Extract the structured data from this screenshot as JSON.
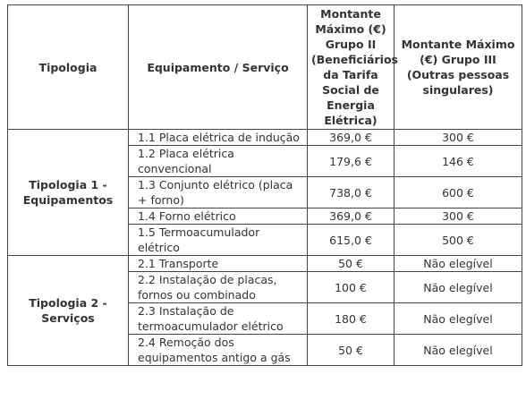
{
  "table": {
    "headers": [
      "Tipologia",
      "Equipamento / Serviço",
      "Montante Máximo (€) Grupo II (Beneficiários da Tarifa Social de Energia Elétrica)",
      "Montante Máximo (€) Grupo III (Outras pessoas singulares)"
    ],
    "groups": [
      {
        "label": "Tipologia 1 - Equipamentos",
        "rows": [
          [
            "1.1 Placa elétrica de indução",
            "369,0 €",
            "300 €"
          ],
          [
            "1.2 Placa elétrica convencional",
            "179,6 €",
            "146 €"
          ],
          [
            "1.3 Conjunto elétrico (placa + forno)",
            "738,0 €",
            "600 €"
          ],
          [
            "1.4 Forno elétrico",
            "369,0 €",
            "300 €"
          ],
          [
            "1.5 Termoacumulador elétrico",
            "615,0 €",
            "500 €"
          ]
        ]
      },
      {
        "label": "Tipologia 2 - Serviços",
        "rows": [
          [
            "2.1 Transporte",
            "50 €",
            "Não elegível"
          ],
          [
            "2.2 Instalação de placas, fornos ou combinado",
            "100 €",
            "Não elegível"
          ],
          [
            "2.3 Instalação de termoacumulador elétrico",
            "180 €",
            "Não elegível"
          ],
          [
            "2.4 Remoção dos equipamentos antigo a gás",
            "50 €",
            "Não elegível"
          ]
        ]
      }
    ]
  }
}
